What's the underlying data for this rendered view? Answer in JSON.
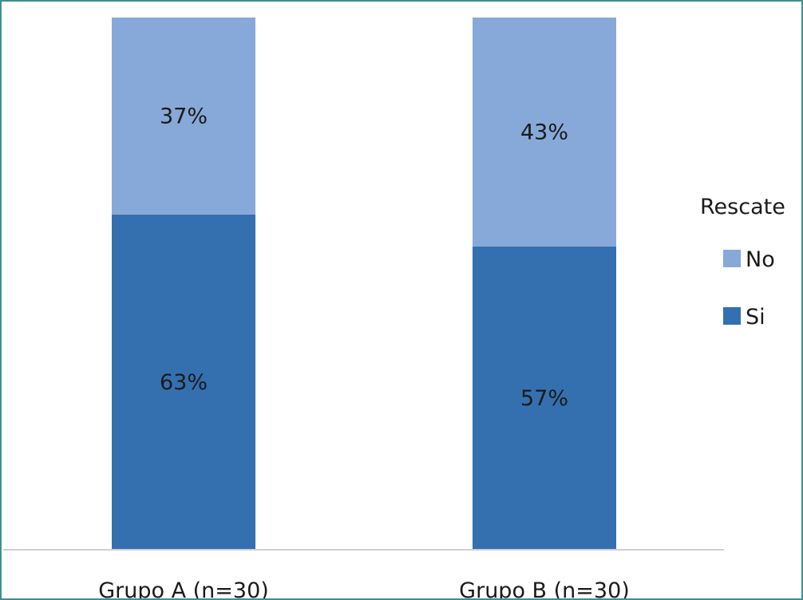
{
  "chart_data": {
    "type": "bar",
    "stacked": true,
    "categories": [
      "Grupo A (n=30)",
      "Grupo B (n=30)"
    ],
    "series": [
      {
        "name": "Si",
        "values": [
          63,
          57
        ],
        "labels": [
          "63%",
          "57%"
        ],
        "color": "#3470b0"
      },
      {
        "name": "No",
        "values": [
          37,
          43
        ],
        "labels": [
          "37%",
          "43%"
        ],
        "color": "#87a9d9"
      }
    ],
    "legend_title": "Rescate",
    "legend_order": [
      "No",
      "Si"
    ],
    "legend_position": "right",
    "ylim": [
      0,
      100
    ],
    "grid": false,
    "title": "",
    "xlabel": "",
    "ylabel": ""
  }
}
